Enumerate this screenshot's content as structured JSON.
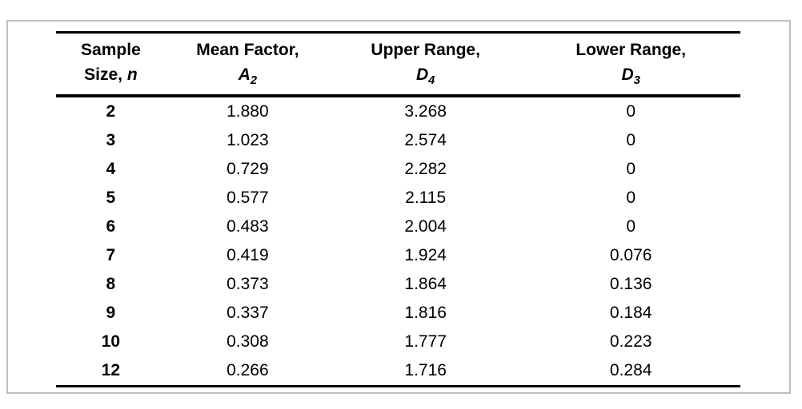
{
  "chart_data": {
    "type": "table",
    "columns": [
      {
        "line1": "Sample",
        "line2_prefix": "Size, ",
        "symbol": "n",
        "subscript": ""
      },
      {
        "line1": "Mean Factor,",
        "line2_prefix": "",
        "symbol": "A",
        "subscript": "2"
      },
      {
        "line1": "Upper Range,",
        "line2_prefix": "",
        "symbol": "D",
        "subscript": "4"
      },
      {
        "line1": "Lower Range,",
        "line2_prefix": "",
        "symbol": "D",
        "subscript": "3"
      }
    ],
    "rows": [
      [
        "2",
        "1.880",
        "3.268",
        "0"
      ],
      [
        "3",
        "1.023",
        "2.574",
        "0"
      ],
      [
        "4",
        "0.729",
        "2.282",
        "0"
      ],
      [
        "5",
        "0.577",
        "2.115",
        "0"
      ],
      [
        "6",
        "0.483",
        "2.004",
        "0"
      ],
      [
        "7",
        "0.419",
        "1.924",
        "0.076"
      ],
      [
        "8",
        "0.373",
        "1.864",
        "0.136"
      ],
      [
        "9",
        "0.337",
        "1.816",
        "0.184"
      ],
      [
        "10",
        "0.308",
        "1.777",
        "0.223"
      ],
      [
        "12",
        "0.266",
        "1.716",
        "0.284"
      ]
    ]
  },
  "colors": {
    "panel_border": "#bfbfbf",
    "rule": "#000000",
    "background": "#ffffff",
    "text": "#000000"
  }
}
